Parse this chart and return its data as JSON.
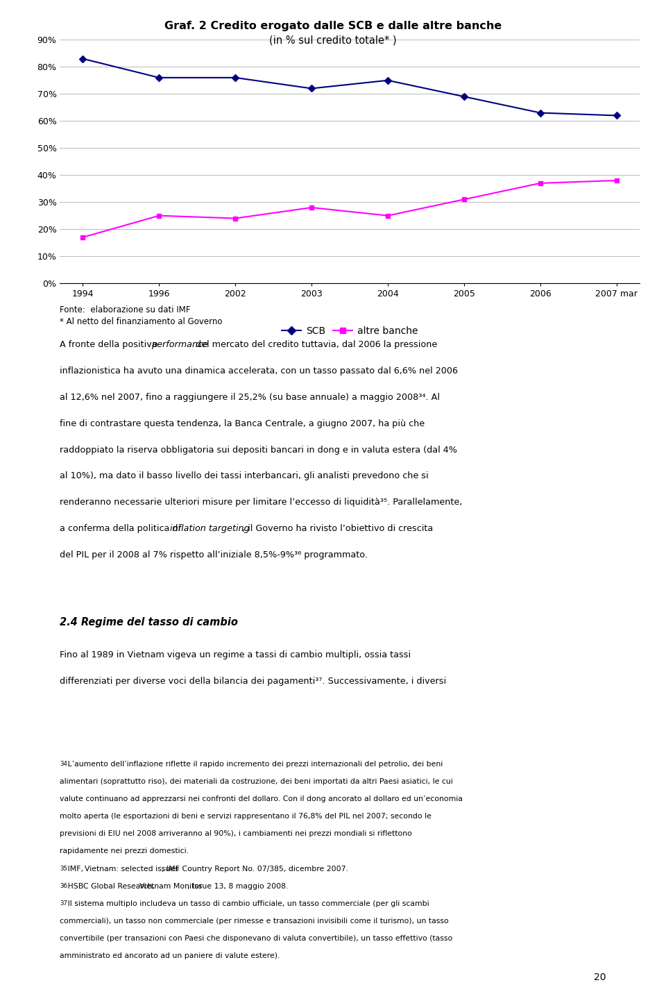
{
  "title_line1": "Graf. 2 Credito erogato dalle SCB e dalle altre banche",
  "title_line2": "(in % sul credito totale* )",
  "x_labels": [
    "1994",
    "1996",
    "2002",
    "2003",
    "2004",
    "2005",
    "2006",
    "2007 mar"
  ],
  "x_positions": [
    0,
    1,
    2,
    3,
    4,
    5,
    6,
    7
  ],
  "scb_values": [
    83,
    76,
    76,
    72,
    75,
    69,
    63,
    62
  ],
  "altre_values": [
    17,
    25,
    24,
    28,
    25,
    31,
    37,
    38
  ],
  "scb_color": "#000080",
  "altre_color": "#FF00FF",
  "yticks": [
    0,
    10,
    20,
    30,
    40,
    50,
    60,
    70,
    80,
    90
  ],
  "ytick_labels": [
    "0%",
    "10%",
    "20%",
    "30%",
    "40%",
    "50%",
    "60%",
    "70%",
    "80%",
    "90%"
  ],
  "legend_scb": "SCB",
  "legend_altre": "altre banche",
  "source_line1": "Fonte:  elaborazione su dati IMF",
  "source_line2": "* Al netto del finanziamento al Governo",
  "background_color": "#ffffff",
  "grid_color": "#c0c0c0",
  "page_number": "20"
}
